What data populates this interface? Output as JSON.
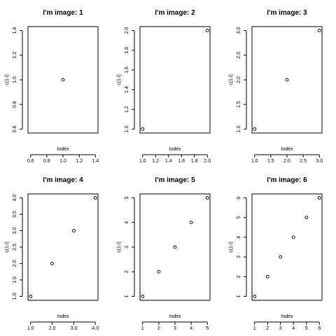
{
  "chart_data": [
    {
      "type": "scatter",
      "title": "I'm image: 1",
      "xlabel": "Index",
      "ylabel": "c(1:i)",
      "x": [
        1
      ],
      "y": [
        1
      ],
      "xlim": [
        0.6,
        1.4
      ],
      "ylim": [
        0.6,
        1.4
      ],
      "xticks": [
        "0.6",
        "0.8",
        "1.0",
        "1.2",
        "1.4"
      ],
      "yticks": [
        "0.6",
        "0.8",
        "1.0",
        "1.2",
        "1.4"
      ],
      "grid": false
    },
    {
      "type": "scatter",
      "title": "I'm image: 2",
      "xlabel": "Index",
      "ylabel": "c(1:i)",
      "x": [
        1,
        2
      ],
      "y": [
        1,
        2
      ],
      "xlim": [
        1.0,
        2.0
      ],
      "ylim": [
        1.0,
        2.0
      ],
      "xticks": [
        "1.0",
        "1.2",
        "1.4",
        "1.6",
        "1.8",
        "2.0"
      ],
      "yticks": [
        "1.0",
        "1.2",
        "1.4",
        "1.6",
        "1.8",
        "2.0"
      ],
      "grid": false
    },
    {
      "type": "scatter",
      "title": "I'm image: 3",
      "xlabel": "Index",
      "ylabel": "c(1:i)",
      "x": [
        1,
        2,
        3
      ],
      "y": [
        1,
        2,
        3
      ],
      "xlim": [
        1.0,
        3.0
      ],
      "ylim": [
        1.0,
        3.0
      ],
      "xticks": [
        "1.0",
        "1.5",
        "2.0",
        "2.5",
        "3.0"
      ],
      "yticks": [
        "1.0",
        "1.5",
        "2.0",
        "2.5",
        "3.0"
      ],
      "grid": false
    },
    {
      "type": "scatter",
      "title": "I'm image: 4",
      "xlabel": "Index",
      "ylabel": "c(1:i)",
      "x": [
        1,
        2,
        3,
        4
      ],
      "y": [
        1,
        2,
        3,
        4
      ],
      "xlim": [
        1.0,
        4.0
      ],
      "ylim": [
        1.0,
        4.0
      ],
      "xticks": [
        "1.0",
        "2.0",
        "3.0",
        "4.0"
      ],
      "yticks": [
        "1.0",
        "1.5",
        "2.0",
        "2.5",
        "3.0",
        "3.5",
        "4.0"
      ],
      "grid": false
    },
    {
      "type": "scatter",
      "title": "I'm image: 5",
      "xlabel": "Index",
      "ylabel": "c(1:i)",
      "x": [
        1,
        2,
        3,
        4,
        5
      ],
      "y": [
        1,
        2,
        3,
        4,
        5
      ],
      "xlim": [
        1,
        5
      ],
      "ylim": [
        1,
        5
      ],
      "xticks": [
        "1",
        "2",
        "3",
        "4",
        "5"
      ],
      "yticks": [
        "1",
        "2",
        "3",
        "4",
        "5"
      ],
      "grid": false
    },
    {
      "type": "scatter",
      "title": "I'm image: 6",
      "xlabel": "Index",
      "ylabel": "c(1:i)",
      "x": [
        1,
        2,
        3,
        4,
        5,
        6
      ],
      "y": [
        1,
        2,
        3,
        4,
        5,
        6
      ],
      "xlim": [
        1,
        6
      ],
      "ylim": [
        1,
        6
      ],
      "xticks": [
        "1",
        "2",
        "3",
        "4",
        "5",
        "6"
      ],
      "yticks": [
        "1",
        "2",
        "3",
        "4",
        "5",
        "6"
      ],
      "grid": false
    }
  ]
}
